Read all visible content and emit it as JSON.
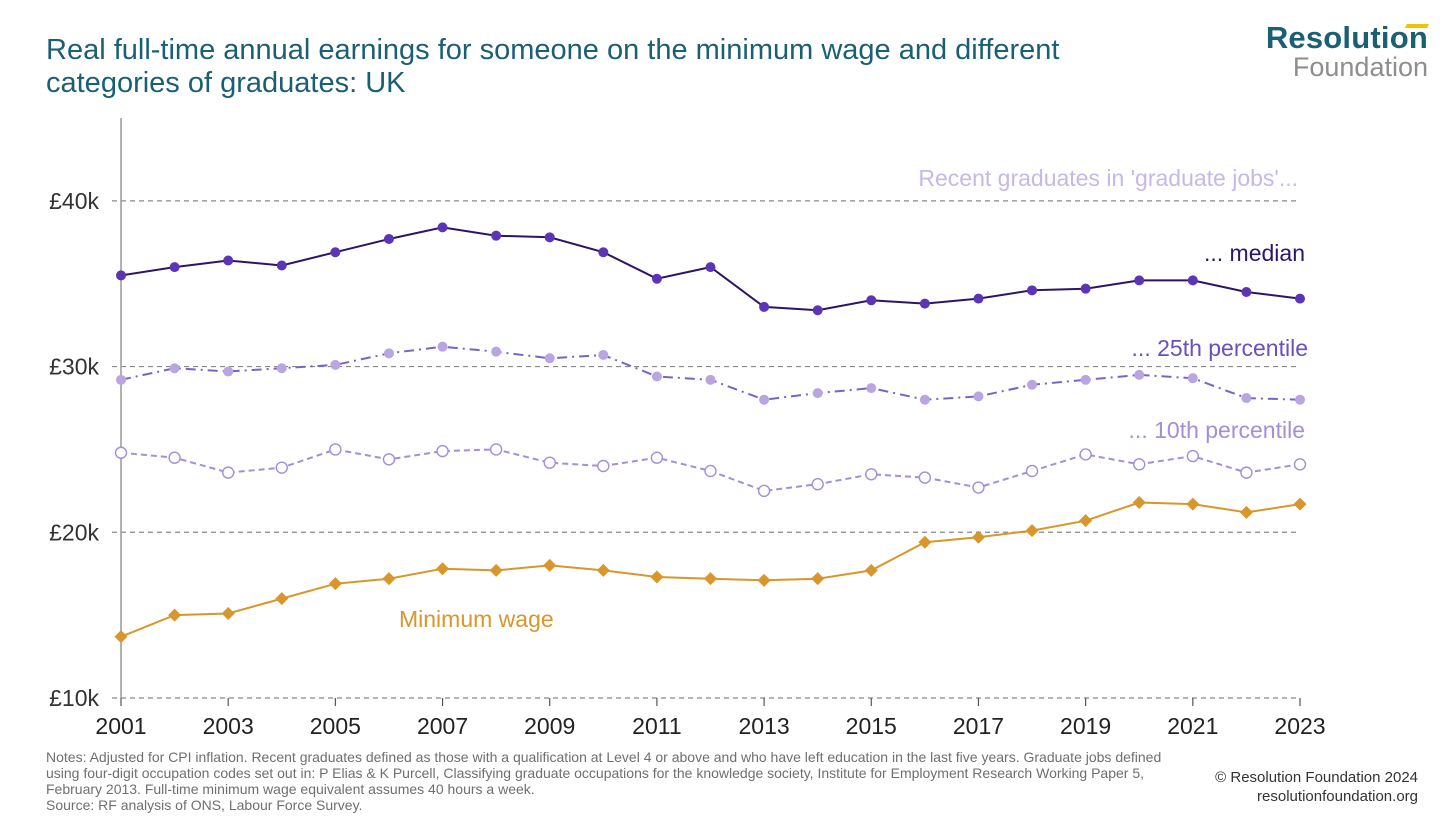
{
  "title": "Real full-time annual earnings for someone on the minimum wage and different categories of graduates: UK",
  "brand": {
    "line1": "Resolution",
    "line2": "Foundation"
  },
  "notes": {
    "line1": "Notes: Adjusted for CPI inflation. Recent graduates defined as those with a qualification at Level 4 or above and who have left education in the last five years. Graduate jobs defined using four-digit occupation codes set out in: P Elias & K Purcell, Classifying graduate occupations for the knowledge society, Institute for Employment Research Working Paper 5, February 2013. Full-time minimum wage equivalent assumes 40 hours a week.",
    "line2": "Source: RF analysis of ONS, Labour Force Survey."
  },
  "copyright": {
    "line1": "© Resolution Foundation 2024",
    "line2": "resolutionfoundation.org"
  },
  "colors": {
    "title": "#1b5f74",
    "median": "#5b35b5",
    "median_line": "#2e1465",
    "p25": "#b9a6e0",
    "p25_line": "#7a63c7",
    "p10": "#c7b8e8",
    "p10_line": "#a48fd6",
    "min_wage": "#d8962b",
    "grid": "#888888",
    "axis": "#999999"
  },
  "chart_data": {
    "type": "line",
    "x": [
      2001,
      2002,
      2003,
      2004,
      2005,
      2006,
      2007,
      2008,
      2009,
      2010,
      2011,
      2012,
      2013,
      2014,
      2015,
      2016,
      2017,
      2018,
      2019,
      2020,
      2021,
      2022,
      2023
    ],
    "xticks": [
      2001,
      2003,
      2005,
      2007,
      2009,
      2011,
      2013,
      2015,
      2017,
      2019,
      2021,
      2023
    ],
    "yticks": [
      {
        "value": 10000,
        "label": "£10k"
      },
      {
        "value": 20000,
        "label": "£20k"
      },
      {
        "value": 30000,
        "label": "£30k"
      },
      {
        "value": 40000,
        "label": "£40k"
      }
    ],
    "ylim": [
      10000,
      45000
    ],
    "xlim": [
      2001,
      2023
    ],
    "grid": "horizontal dashed",
    "annotations": {
      "heading": "Recent graduates in 'graduate jobs'...",
      "median": "... median",
      "p25": "... 25th percentile",
      "p10": "... 10th percentile",
      "min_wage": "Minimum wage"
    },
    "series": [
      {
        "key": "median",
        "marker": "filled-circle",
        "line": "solid",
        "values": [
          35500,
          36000,
          36400,
          36100,
          36900,
          37700,
          38400,
          37900,
          37800,
          36900,
          35300,
          36000,
          33600,
          33400,
          34000,
          33800,
          34100,
          34600,
          34700,
          35200,
          35200,
          34500,
          34100
        ]
      },
      {
        "key": "p25",
        "marker": "filled-circle",
        "line": "dash-dot",
        "values": [
          29200,
          29900,
          29700,
          29900,
          30100,
          30800,
          31200,
          30900,
          30500,
          30700,
          29400,
          29200,
          28000,
          28400,
          28700,
          28000,
          28200,
          28900,
          29200,
          29500,
          29300,
          28100,
          28000
        ]
      },
      {
        "key": "p10",
        "marker": "open-circle",
        "line": "dashed",
        "values": [
          24800,
          24500,
          23600,
          23900,
          25000,
          24400,
          24900,
          25000,
          24200,
          24000,
          24500,
          23700,
          22500,
          22900,
          23500,
          23300,
          22700,
          23700,
          24700,
          24100,
          24600,
          23600,
          24100
        ]
      },
      {
        "key": "min_wage",
        "marker": "diamond",
        "line": "solid",
        "values": [
          13700,
          15000,
          15100,
          16000,
          16900,
          17200,
          17800,
          17700,
          18000,
          17700,
          17300,
          17200,
          17100,
          17200,
          17700,
          19400,
          19700,
          20100,
          20700,
          21800,
          21700,
          21200,
          21700
        ]
      }
    ]
  }
}
